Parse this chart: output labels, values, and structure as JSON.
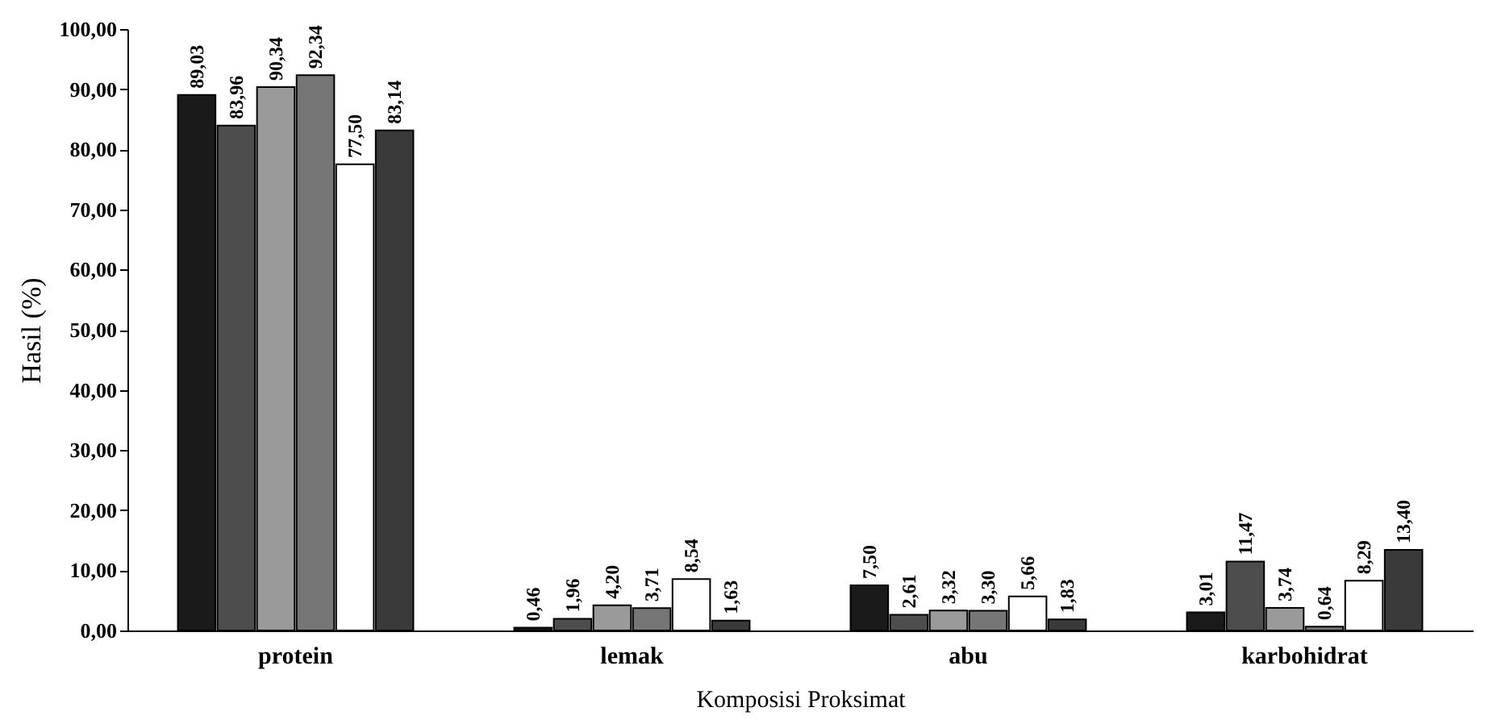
{
  "chart_data": {
    "type": "bar",
    "xlabel": "Komposisi Proksimat",
    "ylabel": "Hasil (%)",
    "categories": [
      "protein",
      "lemak",
      "abu",
      "karbohidrat"
    ],
    "series": [
      {
        "color": "#1a1a1a",
        "values": [
          89.03,
          0.46,
          7.5,
          3.01
        ],
        "value_labels": [
          "89,03",
          "0,46",
          "7,50",
          "3,01"
        ]
      },
      {
        "color": "#4d4d4d",
        "values": [
          83.96,
          1.96,
          2.61,
          11.47
        ],
        "value_labels": [
          "83,96",
          "1,96",
          "2,61",
          "11,47"
        ]
      },
      {
        "color": "#9a9a9a",
        "values": [
          90.34,
          4.2,
          3.32,
          3.74
        ],
        "value_labels": [
          "90,34",
          "4,20",
          "3,32",
          "3,74"
        ]
      },
      {
        "color": "#767676",
        "values": [
          92.34,
          3.71,
          3.3,
          0.64
        ],
        "value_labels": [
          "92,34",
          "3,71",
          "3,30",
          "0,64"
        ]
      },
      {
        "color": "#ffffff",
        "values": [
          77.5,
          8.54,
          5.66,
          8.29
        ],
        "value_labels": [
          "77,50",
          "8,54",
          "5,66",
          "8,29"
        ]
      },
      {
        "color": "#3a3a3a",
        "values": [
          83.14,
          1.63,
          1.83,
          13.4
        ],
        "value_labels": [
          "83,14",
          "1,63",
          "1,83",
          "13,40"
        ]
      }
    ],
    "ylim": [
      0,
      100
    ],
    "yticks": [
      {
        "value": 0,
        "label": "0,00"
      },
      {
        "value": 10,
        "label": "10,00"
      },
      {
        "value": 20,
        "label": "20,00"
      },
      {
        "value": 30,
        "label": "30,00"
      },
      {
        "value": 40,
        "label": "40,00"
      },
      {
        "value": 50,
        "label": "50,00"
      },
      {
        "value": 60,
        "label": "60,00"
      },
      {
        "value": 70,
        "label": "70,00"
      },
      {
        "value": 80,
        "label": "80,00"
      },
      {
        "value": 90,
        "label": "90,00"
      },
      {
        "value": 100,
        "label": "100,00"
      }
    ],
    "grid": false
  }
}
